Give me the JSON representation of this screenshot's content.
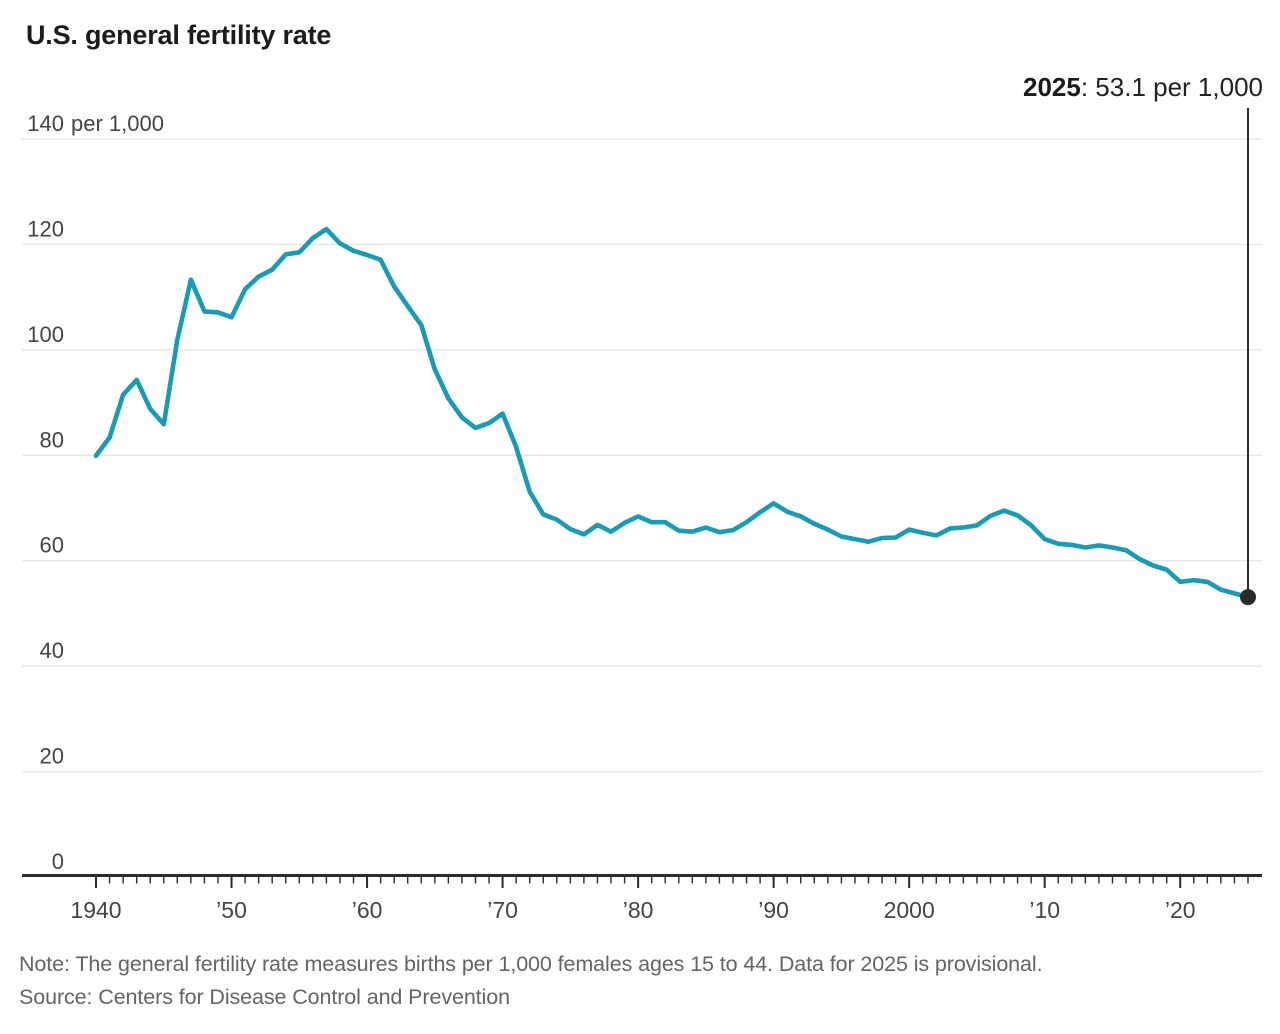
{
  "page": {
    "title": "U.S. general fertility rate"
  },
  "annotation": {
    "year": "2025",
    "value_text": ": 53.1 per 1,000"
  },
  "footer": {
    "note": "Note: The general fertility rate measures births per 1,000 females ages 15 to 44. Data for 2025 is provisional.",
    "source": "Source: Centers for Disease Control and Prevention"
  },
  "colors": {
    "line": "#179cb5",
    "grid": "#e3e3e3",
    "axis": "#2b2b2b",
    "tick_label": "#444444",
    "annotation": "#2b2b2b"
  },
  "chart_data": {
    "type": "line",
    "title": "U.S. general fertility rate",
    "unit_label": "per 1,000",
    "xlabel": "",
    "ylabel": "Births per 1,000 females ages 15 to 44",
    "ylim": [
      0,
      140
    ],
    "xlim": [
      1940,
      2025
    ],
    "grid": true,
    "y_ticks": [
      0,
      20,
      40,
      60,
      80,
      100,
      120,
      140
    ],
    "y_top_tick_label": "140 per 1,000",
    "x_ticks": [
      {
        "year": 1940,
        "label": "1940"
      },
      {
        "year": 1950,
        "label": "’50"
      },
      {
        "year": 1960,
        "label": "’60"
      },
      {
        "year": 1970,
        "label": "’70"
      },
      {
        "year": 1980,
        "label": "’80"
      },
      {
        "year": 1990,
        "label": "’90"
      },
      {
        "year": 2000,
        "label": "2000"
      },
      {
        "year": 2010,
        "label": "’10"
      },
      {
        "year": 2020,
        "label": "’20"
      }
    ],
    "x": [
      1940,
      1941,
      1942,
      1943,
      1944,
      1945,
      1946,
      1947,
      1948,
      1949,
      1950,
      1951,
      1952,
      1953,
      1954,
      1955,
      1956,
      1957,
      1958,
      1959,
      1960,
      1961,
      1962,
      1963,
      1964,
      1965,
      1966,
      1967,
      1968,
      1969,
      1970,
      1971,
      1972,
      1973,
      1974,
      1975,
      1976,
      1977,
      1978,
      1979,
      1980,
      1981,
      1982,
      1983,
      1984,
      1985,
      1986,
      1987,
      1988,
      1989,
      1990,
      1991,
      1992,
      1993,
      1994,
      1995,
      1996,
      1997,
      1998,
      1999,
      2000,
      2001,
      2002,
      2003,
      2004,
      2005,
      2006,
      2007,
      2008,
      2009,
      2010,
      2011,
      2012,
      2013,
      2014,
      2015,
      2016,
      2017,
      2018,
      2019,
      2020,
      2021,
      2022,
      2023,
      2024,
      2025
    ],
    "values": [
      79.9,
      83.4,
      91.5,
      94.3,
      88.8,
      85.9,
      101.9,
      113.3,
      107.3,
      107.1,
      106.2,
      111.5,
      113.9,
      115.2,
      118.1,
      118.5,
      121.2,
      122.9,
      120.2,
      118.8,
      118.0,
      117.1,
      112.0,
      108.3,
      104.7,
      96.3,
      90.8,
      87.2,
      85.2,
      86.1,
      87.9,
      81.6,
      73.1,
      68.8,
      67.8,
      66.0,
      65.0,
      66.8,
      65.5,
      67.2,
      68.4,
      67.3,
      67.3,
      65.7,
      65.5,
      66.3,
      65.4,
      65.8,
      67.3,
      69.2,
      70.9,
      69.3,
      68.4,
      67.0,
      65.9,
      64.6,
      64.1,
      63.6,
      64.3,
      64.4,
      65.9,
      65.3,
      64.8,
      66.1,
      66.3,
      66.7,
      68.5,
      69.5,
      68.6,
      66.7,
      64.1,
      63.2,
      63.0,
      62.5,
      62.9,
      62.5,
      62.0,
      60.3,
      59.1,
      58.3,
      56.0,
      56.3,
      56.0,
      54.5,
      53.8,
      53.1
    ],
    "endpoint": {
      "year": 2025,
      "value": 53.1
    }
  }
}
